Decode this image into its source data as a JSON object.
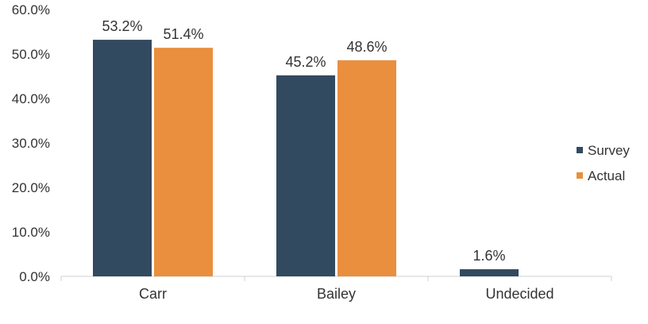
{
  "chart_data": {
    "type": "bar",
    "categories": [
      "Carr",
      "Bailey",
      "Undecided"
    ],
    "series": [
      {
        "name": "Survey",
        "values": [
          53.2,
          45.2,
          1.6
        ],
        "color": "#324a5f",
        "labels": [
          "53.2%",
          "45.2%",
          "1.6%"
        ]
      },
      {
        "name": "Actual",
        "values": [
          51.4,
          48.6,
          null
        ],
        "color": "#e98f3e",
        "labels": [
          "51.4%",
          "48.6%",
          ""
        ]
      }
    ],
    "y_ticks": [
      "0.0%",
      "10.0%",
      "20.0%",
      "30.0%",
      "40.0%",
      "50.0%",
      "60.0%"
    ],
    "ylim": [
      0,
      60
    ],
    "unit": "%",
    "legend_position": "right",
    "grid": false
  }
}
